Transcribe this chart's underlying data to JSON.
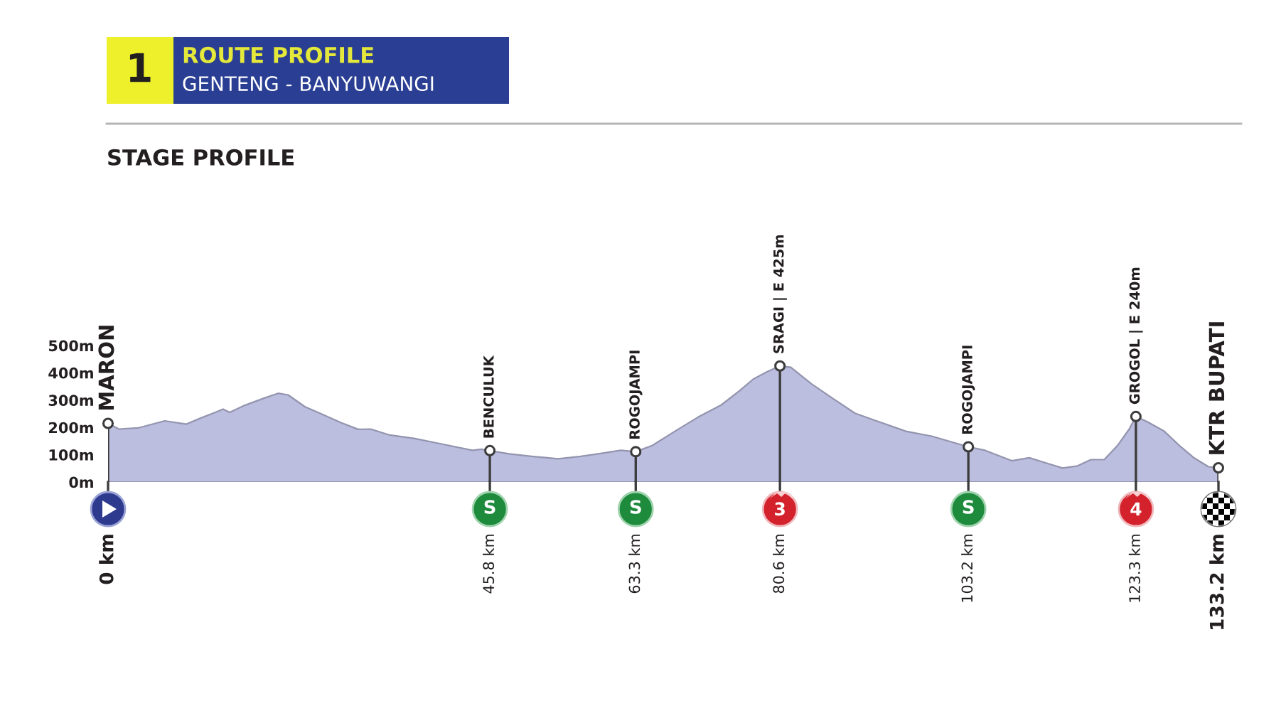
{
  "chart_data": {
    "type": "area",
    "title": "ROUTE PROFILE",
    "subtitle": "GENTENG - BANYUWANGI",
    "x": [
      0,
      1.3,
      3.6,
      6.8,
      9.4,
      11.1,
      12.6,
      13.8,
      14.6,
      16.4,
      18.7,
      20.4,
      21.6,
      23.6,
      25.4,
      28.0,
      30.0,
      31.5,
      33.8,
      36.7,
      39.6,
      43.7,
      44.8,
      45.8,
      48.1,
      50.8,
      54.0,
      56.7,
      58.8,
      61.5,
      63.3,
      65.3,
      68.0,
      70.8,
      73.5,
      75.7,
      77.4,
      79.0,
      80.6,
      81.9,
      84.4,
      86.9,
      89.6,
      91.8,
      95.7,
      98.8,
      103.2,
      105.2,
      108.4,
      110.5,
      112.6,
      114.5,
      116.3,
      117.9,
      119.5,
      121.1,
      122.5,
      123.3,
      124.7,
      126.7,
      128.5,
      130.2,
      132.0,
      133.2
    ],
    "series": [
      {
        "color": "#bcbedf",
        "values": [
          215,
          194,
          198,
          224,
          212,
          234,
          252,
          267,
          255,
          281,
          307,
          325,
          319,
          276,
          252,
          217,
          193,
          194,
          172,
          160,
          142,
          116,
          120,
          115,
          103,
          94,
          85,
          94,
          103,
          116,
          111,
          134,
          186,
          238,
          281,
          333,
          377,
          403,
          425,
          420,
          359,
          307,
          252,
          228,
          186,
          168,
          129,
          116,
          78,
          89,
          69,
          51,
          59,
          82,
          82,
          134,
          194,
          240,
          220,
          186,
          134,
          90,
          56,
          52
        ]
      },
      {
        "type": "lollipop",
        "color": "#3c3c3c",
        "marker": "circle",
        "x": [
          0,
          45.8,
          63.3,
          80.6,
          103.2,
          123.3,
          133.2
        ],
        "values": [
          215,
          115,
          111,
          425,
          129,
          240,
          52
        ]
      }
    ],
    "xlim": [
      0,
      133.2
    ],
    "xticks": [
      {
        "value": 0,
        "label": "0 km"
      },
      {
        "value": 45.8,
        "label": "45.8 km"
      },
      {
        "value": 63.3,
        "label": "63.3 km"
      },
      {
        "value": 80.6,
        "label": "80.6 km"
      },
      {
        "value": 103.2,
        "label": "103.2 km"
      },
      {
        "value": 123.3,
        "label": "123.3 km"
      },
      {
        "value": 133.2,
        "label": "133.2 km"
      }
    ],
    "ylim": [
      0,
      500
    ],
    "yticks": [
      {
        "value": 0,
        "label": "0m"
      },
      {
        "value": 100,
        "label": "100m"
      },
      {
        "value": 200,
        "label": "200m"
      },
      {
        "value": 300,
        "label": "300m"
      },
      {
        "value": 400,
        "label": "400m"
      },
      {
        "value": 500,
        "label": "500m"
      }
    ],
    "annotations": [
      "1",
      "STAGE PROFILE",
      "3",
      "4",
      {
        "text": "MARON",
        "x": 0,
        "y": 215
      },
      {
        "text": "BENCULUK",
        "x": 45.8,
        "y": 115
      },
      {
        "text": "ROGOJAMPI",
        "x": 63.3,
        "y": 111
      },
      {
        "text": "SRAGI | E 425m",
        "x": 80.6,
        "y": 425
      },
      {
        "text": "ROGOJAMPI",
        "x": 103.2,
        "y": 129
      },
      {
        "text": "GROGOL | E 240m",
        "x": 123.3,
        "y": 240
      },
      {
        "text": "KTR BUPATI",
        "x": 133.2,
        "y": 52
      }
    ]
  }
}
